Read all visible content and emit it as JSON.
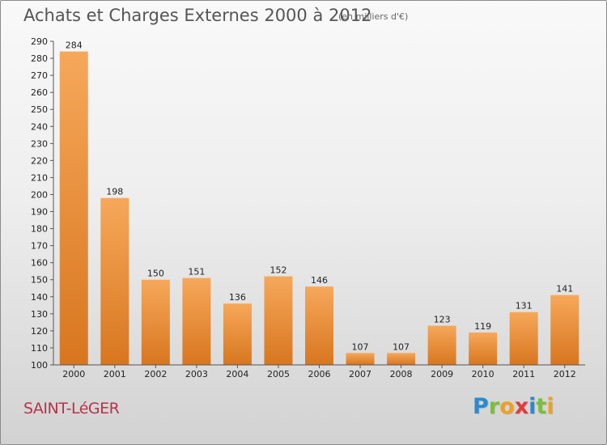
{
  "header": {
    "title": "Achats et Charges Externes 2000 à 2012",
    "subtitle": "(en milliers d'€)"
  },
  "footer": {
    "town": "SAINT-LéGER",
    "logo_letters": [
      {
        "ch": "P",
        "color": "#2a8ad0"
      },
      {
        "ch": "r",
        "color": "#7bbf3a"
      },
      {
        "ch": "o",
        "color": "#f0a020"
      },
      {
        "ch": "x",
        "color": "#e23b3b"
      },
      {
        "ch": "i",
        "color": "#2a8ad0"
      },
      {
        "ch": "t",
        "color": "#7bbf3a"
      },
      {
        "ch": "i",
        "color": "#f0a020"
      }
    ]
  },
  "chart_data": {
    "type": "bar",
    "title": "Achats et Charges Externes 2000 à 2012",
    "subtitle": "(en milliers d'€)",
    "categories": [
      "2000",
      "2001",
      "2002",
      "2003",
      "2004",
      "2005",
      "2006",
      "2007",
      "2008",
      "2009",
      "2010",
      "2011",
      "2012"
    ],
    "values": [
      284,
      198,
      150,
      151,
      136,
      152,
      146,
      107,
      107,
      123,
      119,
      131,
      141
    ],
    "ylim": [
      100,
      290
    ],
    "ytick_step": 10,
    "grid": false,
    "bar_color": "#f0a050",
    "bar_color_dark": "#d97a25"
  }
}
